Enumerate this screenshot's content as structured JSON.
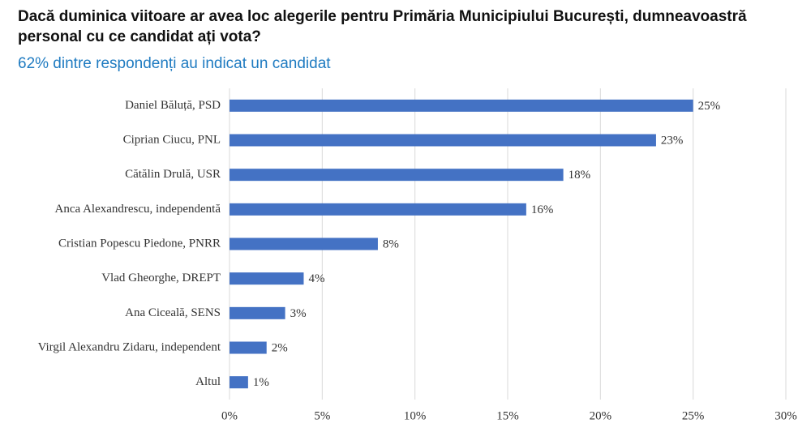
{
  "chart_data": {
    "type": "bar",
    "orientation": "horizontal",
    "title": "Dacă duminica viitoare ar avea loc alegerile pentru Primăria Municipiului București, dumneavoastră personal cu ce candidat ați vota?",
    "subtitle": "62% dintre respondenți au indicat un candidat",
    "categories": [
      "Daniel Băluță, PSD",
      "Ciprian Ciucu, PNL",
      "Cătălin Drulă, USR",
      "Anca Alexandrescu, independentă",
      "Cristian Popescu Piedone, PNRR",
      "Vlad Gheorghe, DREPT",
      "Ana Ciceală, SENS",
      "Virgil Alexandru Zidaru, independent",
      "Altul"
    ],
    "values": [
      25,
      23,
      18,
      16,
      8,
      4,
      3,
      2,
      1
    ],
    "value_labels": [
      "25%",
      "23%",
      "18%",
      "16%",
      "8%",
      "4%",
      "3%",
      "2%",
      "1%"
    ],
    "color": "#4472c4",
    "xlim": [
      0,
      30
    ],
    "xticks": [
      {
        "value": 0,
        "label": "0%"
      },
      {
        "value": 5,
        "label": "5%"
      },
      {
        "value": 10,
        "label": "10%"
      },
      {
        "value": 15,
        "label": "15%"
      },
      {
        "value": 20,
        "label": "20%"
      },
      {
        "value": 25,
        "label": "25%"
      },
      {
        "value": 30,
        "label": "30%"
      }
    ],
    "grid": true
  }
}
